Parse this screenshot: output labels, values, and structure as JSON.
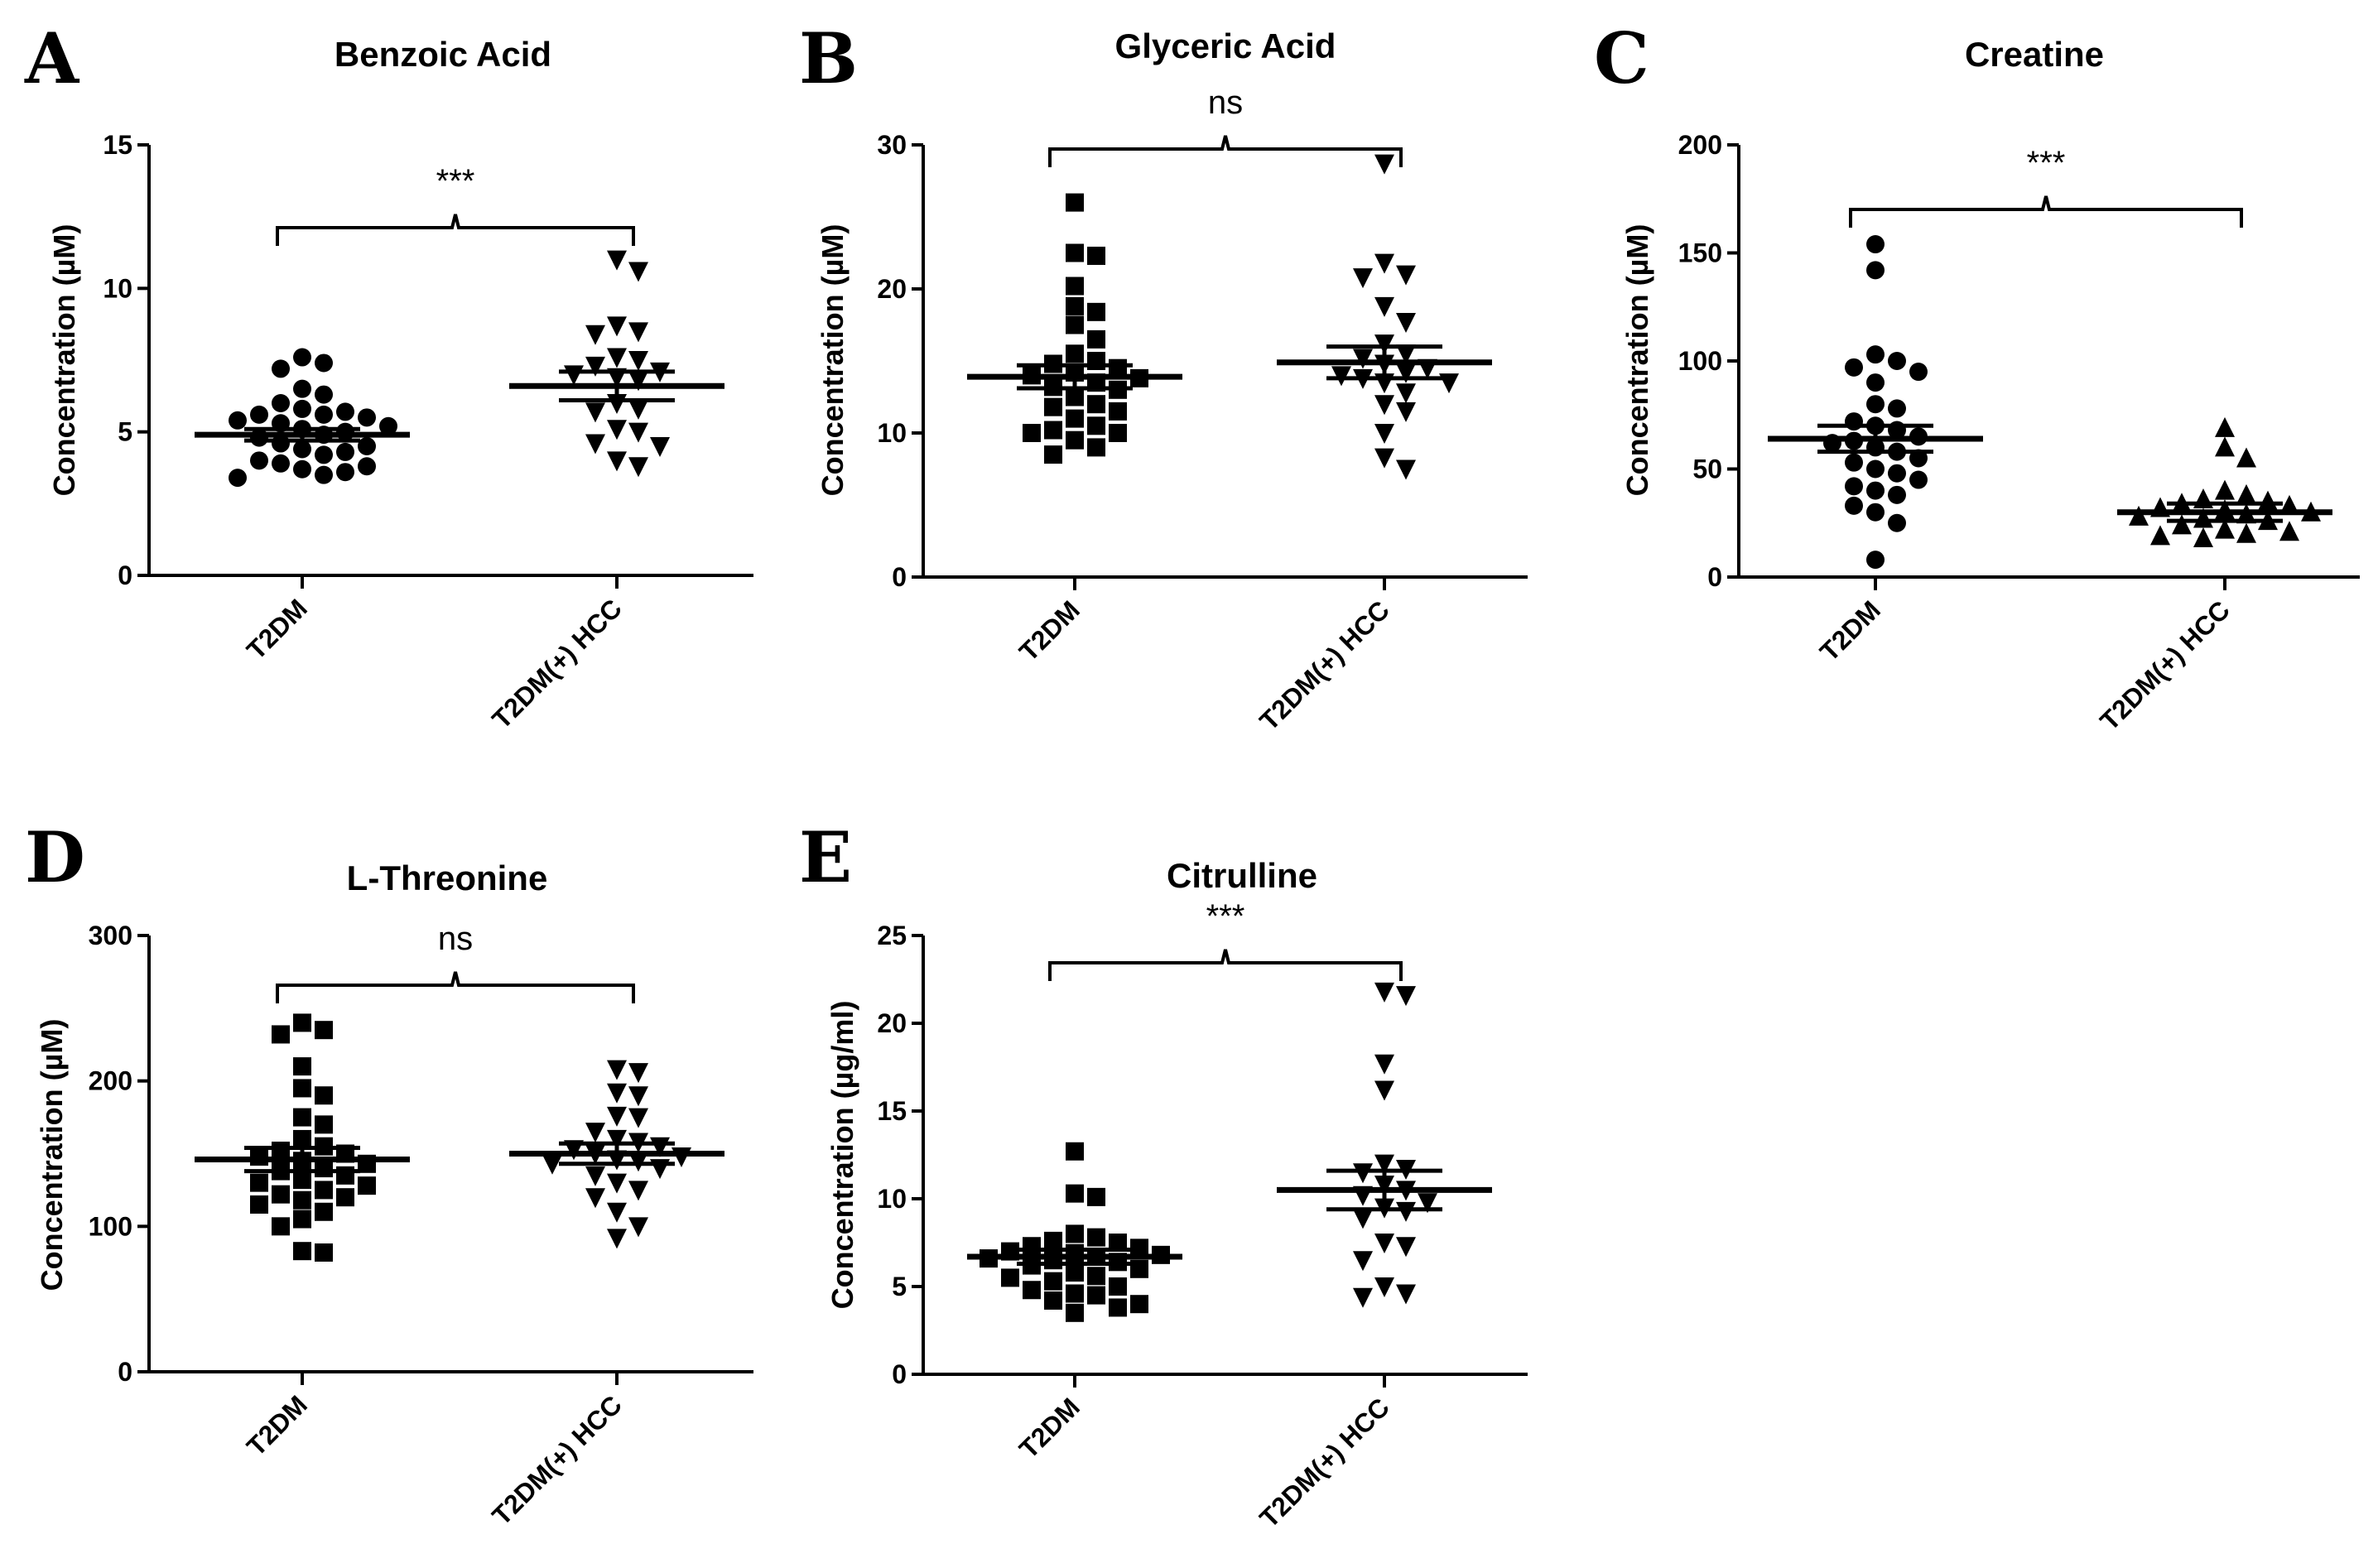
{
  "chart_data": [
    {
      "panel": "A",
      "type": "scatter",
      "title": "Benzoic Acid",
      "ylabel": "Concentration (µM)",
      "ylim": [
        0,
        15
      ],
      "yticks": [
        0,
        5,
        10,
        15
      ],
      "categories": [
        "T2DM",
        "T2DM(+) HCC"
      ],
      "marker": "circle",
      "markers": [
        "circle",
        "triangle-down"
      ],
      "significance": "***",
      "series": [
        {
          "name": "T2DM",
          "mean": 4.9,
          "sem": 0.2,
          "values": [
            7.6,
            7.4,
            7.2,
            6.5,
            6.3,
            6.0,
            5.8,
            5.7,
            5.6,
            5.6,
            5.5,
            5.4,
            5.3,
            5.2,
            5.1,
            5.0,
            4.9,
            4.8,
            4.6,
            4.5,
            4.4,
            4.3,
            4.2,
            4.0,
            3.9,
            3.8,
            3.7,
            3.6,
            3.5,
            3.4
          ]
        },
        {
          "name": "T2DM(+) HCC",
          "mean": 6.6,
          "sem": 0.5,
          "values": [
            11.0,
            10.6,
            8.7,
            8.5,
            8.4,
            7.6,
            7.5,
            7.3,
            7.1,
            7.0,
            6.9,
            6.8,
            6.0,
            5.8,
            5.7,
            5.1,
            5.0,
            4.6,
            4.5,
            4.0,
            3.8
          ]
        }
      ]
    },
    {
      "panel": "B",
      "type": "scatter",
      "title": "Glyceric Acid",
      "ylabel": "Concentration (µM)",
      "ylim": [
        0,
        30
      ],
      "yticks": [
        0,
        10,
        20,
        30
      ],
      "categories": [
        "T2DM",
        "T2DM(+) HCC"
      ],
      "marker": "square",
      "markers": [
        "square",
        "triangle-down"
      ],
      "significance": "ns",
      "series": [
        {
          "name": "T2DM",
          "mean": 13.9,
          "sem": 0.8,
          "values": [
            26.0,
            22.5,
            22.3,
            20.2,
            18.8,
            18.4,
            17.5,
            16.5,
            15.5,
            15.0,
            14.8,
            14.5,
            14.2,
            14.0,
            13.8,
            13.5,
            13.2,
            13.0,
            12.5,
            12.0,
            11.8,
            11.5,
            11.0,
            10.5,
            10.2,
            10.0,
            10.0,
            9.5,
            9.0,
            8.5
          ]
        },
        {
          "name": "T2DM(+) HCC",
          "mean": 14.9,
          "sem": 1.1,
          "values": [
            28.7,
            21.8,
            21.0,
            20.8,
            18.8,
            17.7,
            16.2,
            15.5,
            15.2,
            14.8,
            14.5,
            14.2,
            14.0,
            13.8,
            13.5,
            13.5,
            12.8,
            12.0,
            11.5,
            10.0,
            8.3,
            7.5
          ]
        }
      ]
    },
    {
      "panel": "C",
      "type": "scatter",
      "title": "Creatine",
      "ylabel": "Concentration (µM)",
      "ylim": [
        0,
        200
      ],
      "yticks": [
        0,
        50,
        100,
        150,
        200
      ],
      "categories": [
        "T2DM",
        "T2DM(+) HCC"
      ],
      "marker": "circle",
      "markers": [
        "circle",
        "triangle"
      ],
      "significance": "***",
      "series": [
        {
          "name": "T2DM",
          "mean": 64,
          "sem": 6,
          "values": [
            154,
            142,
            103,
            100,
            97,
            95,
            90,
            80,
            78,
            72,
            70,
            68,
            65,
            63,
            62,
            60,
            58,
            55,
            53,
            50,
            48,
            45,
            42,
            40,
            38,
            33,
            30,
            25,
            8
          ]
        },
        {
          "name": "T2DM(+) HCC",
          "mean": 30,
          "sem": 4,
          "values": [
            69,
            60,
            55,
            40,
            38,
            36,
            35,
            34,
            33,
            32,
            31,
            30,
            29,
            28,
            27,
            26,
            24,
            22,
            21,
            20,
            19,
            18
          ]
        }
      ]
    },
    {
      "panel": "D",
      "type": "scatter",
      "title": "L-Threonine",
      "ylabel": "Concentration (µM)",
      "ylim": [
        0,
        300
      ],
      "yticks": [
        0,
        100,
        200,
        300
      ],
      "categories": [
        "T2DM",
        "T2DM(+) HCC"
      ],
      "marker": "square",
      "markers": [
        "square",
        "triangle-down"
      ],
      "significance": "ns",
      "series": [
        {
          "name": "T2DM",
          "mean": 146,
          "sem": 8,
          "values": [
            240,
            235,
            232,
            210,
            195,
            190,
            175,
            170,
            160,
            155,
            152,
            150,
            148,
            145,
            143,
            140,
            138,
            135,
            132,
            130,
            128,
            125,
            122,
            120,
            118,
            115,
            110,
            105,
            100,
            83,
            82
          ]
        },
        {
          "name": "T2DM(+) HCC",
          "mean": 150,
          "sem": 7,
          "values": [
            208,
            206,
            192,
            190,
            176,
            175,
            165,
            160,
            158,
            155,
            153,
            150,
            148,
            146,
            145,
            143,
            140,
            135,
            130,
            125,
            120,
            110,
            100,
            92
          ]
        }
      ]
    },
    {
      "panel": "E",
      "type": "scatter",
      "title": "Citrulline",
      "ylabel": "Concentration (µg/ml)",
      "ylim": [
        0,
        25
      ],
      "yticks": [
        0,
        5,
        10,
        15,
        20,
        25
      ],
      "categories": [
        "T2DM",
        "T2DM(+) HCC"
      ],
      "marker": "square",
      "markers": [
        "square",
        "triangle-down"
      ],
      "significance": "***",
      "series": [
        {
          "name": "T2DM",
          "mean": 6.7,
          "sem": 0.4,
          "values": [
            12.7,
            10.3,
            10.1,
            8.0,
            7.8,
            7.6,
            7.5,
            7.3,
            7.2,
            7.0,
            6.9,
            6.8,
            6.7,
            6.6,
            6.5,
            6.4,
            6.2,
            6.0,
            5.8,
            5.6,
            5.5,
            5.3,
            5.0,
            4.8,
            4.6,
            4.5,
            4.2,
            4.0,
            3.8,
            3.5
          ]
        },
        {
          "name": "T2DM(+) HCC",
          "mean": 10.5,
          "sem": 1.1,
          "values": [
            21.8,
            21.6,
            17.7,
            16.2,
            12.0,
            11.7,
            11.5,
            10.8,
            10.5,
            10.2,
            9.8,
            9.5,
            9.3,
            8.9,
            7.5,
            7.3,
            6.5,
            5.0,
            4.6,
            4.4
          ]
        }
      ]
    }
  ]
}
